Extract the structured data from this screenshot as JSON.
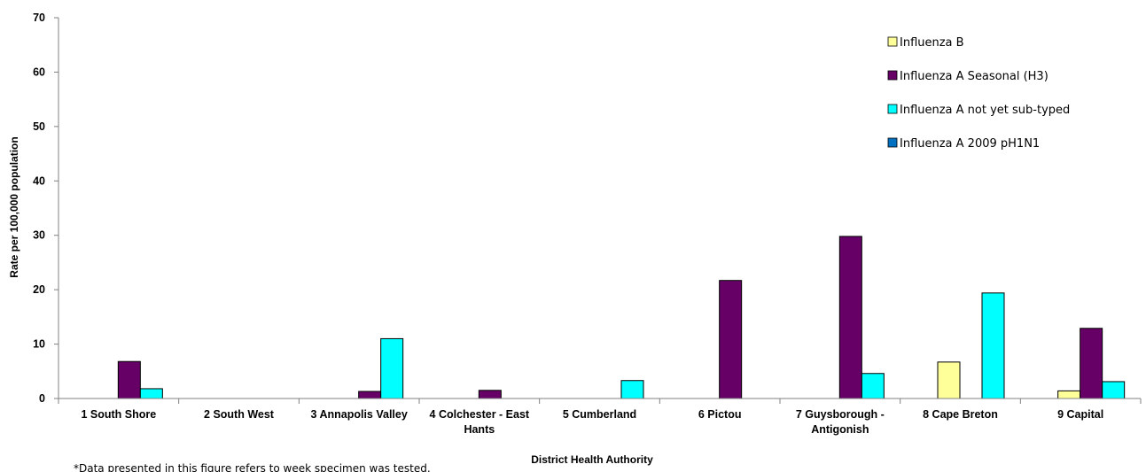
{
  "chart_data": {
    "type": "bar",
    "xlabel": "District Health Authority",
    "ylabel": "Rate per 100,000 population",
    "ylim": [
      0,
      70
    ],
    "yticks": [
      0,
      10,
      20,
      30,
      40,
      50,
      60,
      70
    ],
    "grid": false,
    "legend_position": "top-right",
    "categories": [
      [
        "1 South Shore"
      ],
      [
        "2 South West"
      ],
      [
        "3 Annapolis Valley"
      ],
      [
        "4 Colchester - East",
        "Hants"
      ],
      [
        "5 Cumberland"
      ],
      [
        "6 Pictou"
      ],
      [
        "7 Guysborough -",
        "Antigonish"
      ],
      [
        "8 Cape Breton"
      ],
      [
        "9 Capital"
      ]
    ],
    "series": [
      {
        "name": "Influenza A 2009 pH1N1",
        "color": "#0070C0",
        "values": [
          0,
          0,
          0,
          0,
          0,
          0,
          0,
          0,
          0
        ]
      },
      {
        "name": "Influenza B",
        "color": "#FFFF99",
        "values": [
          0,
          0,
          0,
          0,
          0,
          0,
          0,
          6.7,
          1.4
        ]
      },
      {
        "name": "Influenza A Seasonal (H3)",
        "color": "#660066",
        "values": [
          6.8,
          0,
          1.3,
          1.5,
          0,
          21.7,
          29.8,
          0,
          12.9
        ]
      },
      {
        "name": "Influenza A not yet sub-typed",
        "color": "#00FFFF",
        "values": [
          1.8,
          0,
          11.0,
          0,
          3.3,
          0,
          4.6,
          19.4,
          3.1
        ]
      }
    ],
    "legend_order": [
      1,
      2,
      3,
      0
    ]
  },
  "footnote": "*Data presented in this figure refers to week specimen was tested."
}
